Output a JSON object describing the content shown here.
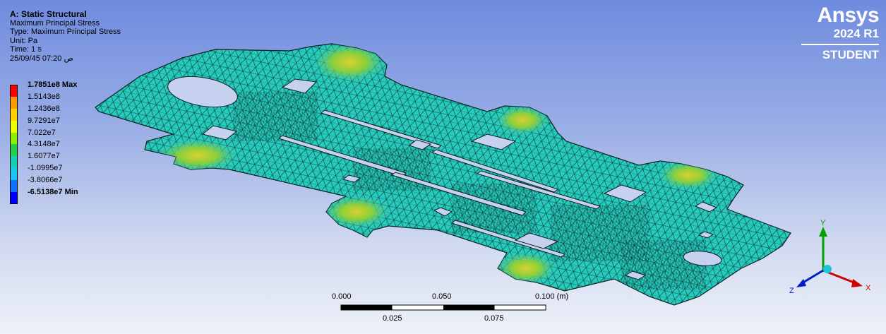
{
  "header": {
    "title": "A: Static Structural",
    "result": "Maximum Principal Stress",
    "type": "Type: Maximum Principal Stress",
    "unit": "Unit: Pa",
    "time": "Time: 1 s",
    "date": "25/09/45 07:20 ص"
  },
  "legend": {
    "items": [
      {
        "label": "1.7851e8 Max",
        "color": "#ff0000",
        "bold": true
      },
      {
        "label": "1.5143e8",
        "color": "#ff9a00",
        "bold": false
      },
      {
        "label": "1.2436e8",
        "color": "#ffd200",
        "bold": false
      },
      {
        "label": "9.7291e7",
        "color": "#f0ff00",
        "bold": false
      },
      {
        "label": "7.022e7",
        "color": "#8ef000",
        "bold": false
      },
      {
        "label": "4.3148e7",
        "color": "#22d04a",
        "bold": false
      },
      {
        "label": "1.6077e7",
        "color": "#16cdb6",
        "bold": false
      },
      {
        "label": "-1.0995e7",
        "color": "#18c6ef",
        "bold": false
      },
      {
        "label": "-3.8066e7",
        "color": "#1070ff",
        "bold": false
      },
      {
        "label": "-6.5138e7 Min",
        "color": "#0000ff",
        "bold": true
      }
    ]
  },
  "logo": {
    "brand": "Ansys",
    "version": "2024 R1",
    "edition": "STUDENT"
  },
  "scale_bar": {
    "top_labels": [
      "0.000",
      "0.050",
      "0.100 (m)"
    ],
    "bottom_labels": [
      "0.025",
      "0.075"
    ]
  },
  "triad": {
    "x_label": "X",
    "y_label": "Y",
    "z_label": "Z",
    "x_color": "#d00000",
    "y_color": "#00a000",
    "z_color": "#0020c0"
  },
  "colors": {
    "mesh_fill": "#27cbbd",
    "mesh_lines": "#0d3a36",
    "hotspot": "#9cd23a"
  }
}
